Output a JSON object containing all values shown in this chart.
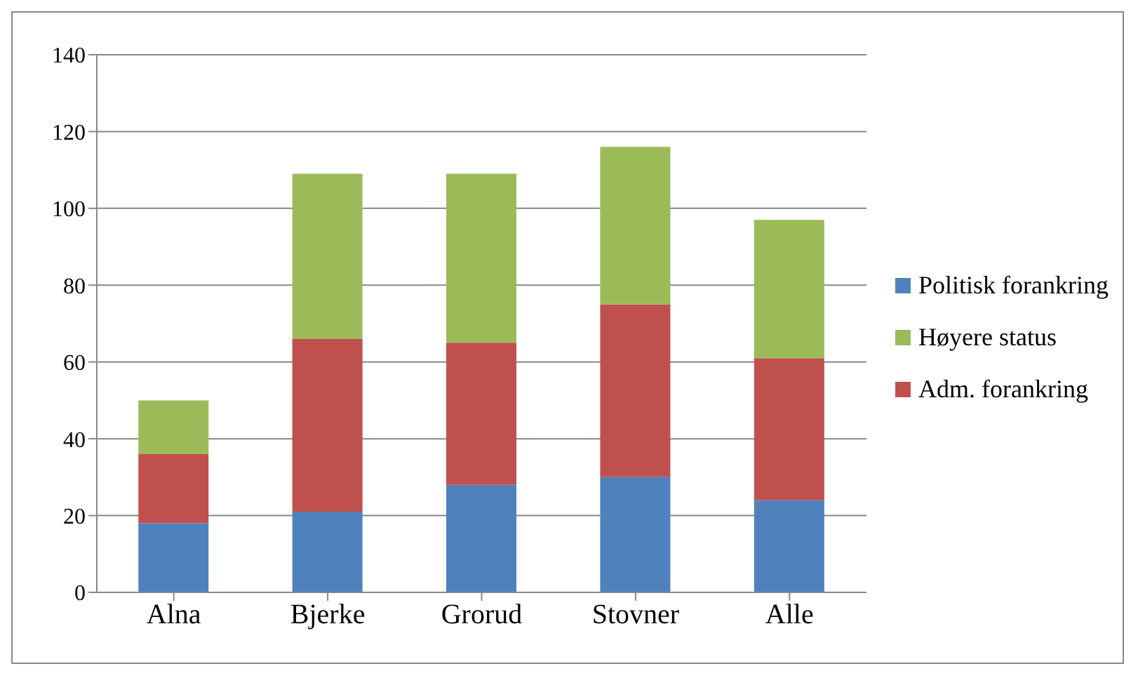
{
  "chart_data": {
    "type": "bar",
    "stacked": true,
    "categories": [
      "Alna",
      "Bjerke",
      "Grorud",
      "Stovner",
      "Alle"
    ],
    "series": [
      {
        "name": "Politisk forankring",
        "color": "#4f81bd",
        "values": [
          18,
          21,
          28,
          30,
          24
        ]
      },
      {
        "name": "Adm. forankring",
        "color": "#c0504d",
        "values": [
          18,
          45,
          37,
          45,
          37
        ]
      },
      {
        "name": "Høyere status",
        "color": "#9bbb59",
        "values": [
          14,
          43,
          44,
          41,
          36
        ]
      }
    ],
    "ylim": [
      0,
      140
    ],
    "yticks": [
      0,
      20,
      40,
      60,
      80,
      100,
      120,
      140
    ],
    "grid": "y",
    "legend": "right"
  }
}
